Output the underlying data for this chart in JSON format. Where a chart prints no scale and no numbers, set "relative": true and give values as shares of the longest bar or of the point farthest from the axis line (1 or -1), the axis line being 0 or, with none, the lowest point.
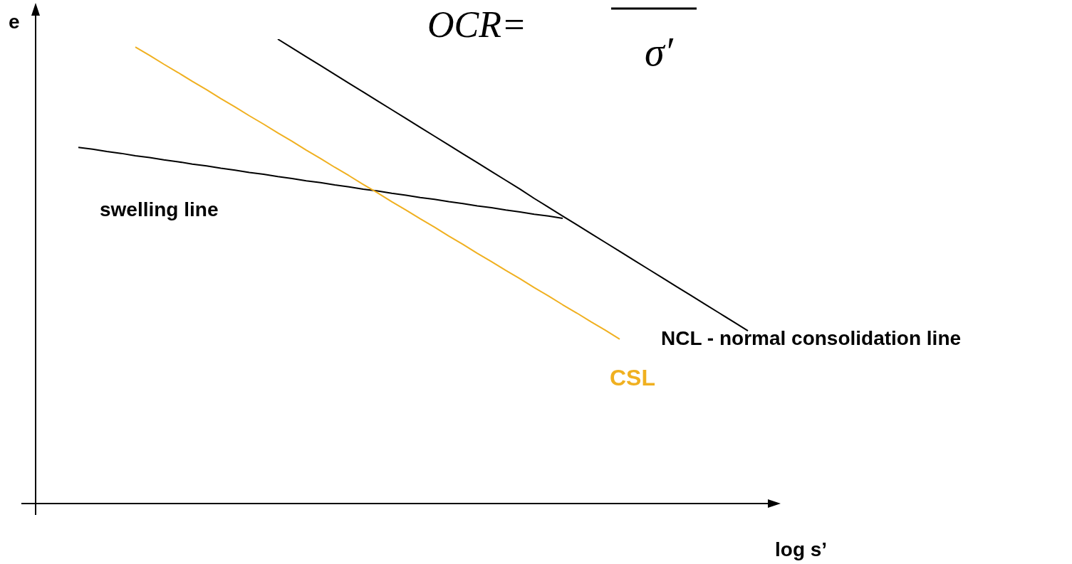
{
  "chart_data": {
    "type": "line",
    "title": "OCR=",
    "annotations": [
      "σ′"
    ],
    "ylabel": "e",
    "xlabel": "log s’",
    "relative": true,
    "marker": "none",
    "line_style": "solid",
    "categories": [
      null,
      null,
      null,
      null,
      null,
      null,
      null,
      null,
      null,
      null,
      null,
      null,
      null,
      null,
      null,
      null,
      null,
      null,
      null,
      null,
      null,
      null,
      null,
      null,
      null,
      null,
      null,
      null,
      null,
      null,
      null,
      null,
      null,
      null,
      null,
      null,
      null,
      null,
      null,
      null,
      null,
      null,
      null,
      null,
      null,
      null,
      null,
      null,
      null,
      null,
      null,
      null,
      null
    ],
    "series": [
      {
        "name": "swelling line",
        "color": "#000000",
        "values": [
          null,
          null,
          null,
          0.767,
          0.763,
          0.758,
          0.754,
          0.749,
          0.745,
          0.74,
          0.736,
          0.731,
          0.727,
          0.722,
          0.718,
          0.713,
          0.709,
          0.704,
          0.7,
          0.695,
          0.691,
          0.686,
          0.682,
          0.677,
          0.673,
          0.668,
          0.664,
          0.659,
          0.655,
          0.65,
          0.646,
          0.641,
          0.637,
          0.632,
          0.628,
          0.623,
          0.619,
          0.614,
          null,
          null,
          null,
          null,
          null,
          null,
          null,
          null,
          null,
          null,
          null,
          null,
          null,
          null,
          null
        ]
      },
      {
        "name": "NCL - normal consolidation line",
        "color": "#000000",
        "values": [
          null,
          null,
          null,
          null,
          null,
          null,
          null,
          null,
          null,
          null,
          null,
          null,
          null,
          null,
          null,
          null,
          null,
          1.0,
          0.981,
          0.962,
          0.943,
          0.924,
          0.905,
          0.886,
          0.867,
          0.848,
          0.829,
          0.81,
          0.791,
          0.772,
          0.753,
          0.734,
          0.715,
          0.696,
          0.677,
          0.657,
          0.638,
          0.619,
          0.6,
          0.581,
          0.562,
          0.543,
          0.524,
          0.505,
          0.486,
          0.467,
          0.448,
          0.429,
          0.41,
          0.391,
          0.372,
          null,
          null
        ]
      },
      {
        "name": "CSL",
        "color": "#f0b020",
        "values": [
          null,
          null,
          null,
          null,
          null,
          null,
          null,
          0.983,
          0.965,
          0.946,
          0.928,
          0.909,
          0.891,
          0.872,
          0.854,
          0.835,
          0.817,
          0.798,
          0.78,
          0.761,
          0.743,
          0.724,
          0.706,
          0.687,
          0.669,
          0.65,
          0.632,
          0.613,
          0.595,
          0.576,
          0.558,
          0.539,
          0.521,
          0.502,
          0.484,
          0.465,
          0.447,
          0.428,
          0.41,
          0.391,
          0.373,
          0.354,
          null,
          null,
          null,
          null,
          null,
          null,
          null,
          null,
          null,
          null,
          null
        ]
      }
    ]
  }
}
